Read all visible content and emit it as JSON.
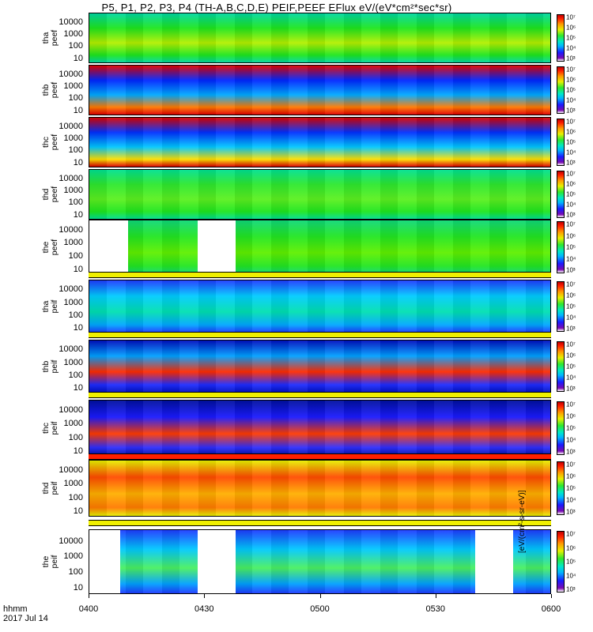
{
  "chart_data": {
    "type": "heatmap",
    "title": "P5, P1, P2, P3, P4 (TH-A,B,C,D,E) PEIF,PEEF EFlux eV/(eV*cm²*sec*sr)",
    "date": "2017 Jul 14",
    "xlabel": "hhmm",
    "x_ticks": [
      "0400",
      "0430",
      "0500",
      "0530",
      "0600"
    ],
    "x_range": [
      "0400",
      "0600"
    ],
    "y_ticks": [
      "10",
      "100",
      "1000",
      "10000"
    ],
    "y_scale": "log",
    "colorbar": {
      "scale": "log",
      "colormap": "rainbow",
      "label": "[eV/(cm²-s-sr-eV)]",
      "tick_labels": [
        "10³",
        "10⁴",
        "10⁵",
        "10⁶",
        "10⁷"
      ]
    },
    "panels": [
      {
        "name": "tha peef",
        "label": "tha\npeef"
      },
      {
        "name": "thb peef",
        "label": "thb\npeef"
      },
      {
        "name": "thc peef",
        "label": "thc\npeef"
      },
      {
        "name": "thd peef",
        "label": "thd\npeef"
      },
      {
        "name": "the peef",
        "label": "the\npeef"
      },
      {
        "name": "tha peif",
        "label": "tha\npeif"
      },
      {
        "name": "thb peif",
        "label": "thb\npeif"
      },
      {
        "name": "thc peif",
        "label": "thc\npeif"
      },
      {
        "name": "thd peif",
        "label": "thd\npeif"
      },
      {
        "name": "the peif",
        "label": "the\npeif"
      }
    ],
    "data_gaps": {
      "the peef": [
        [
          "0400",
          "0410"
        ],
        [
          "0428",
          "0438"
        ]
      ],
      "the peif": [
        [
          "0400",
          "0408"
        ],
        [
          "0428",
          "0438"
        ],
        [
          "0540",
          "0550"
        ]
      ]
    }
  },
  "colors": {
    "low": "#1a1aff",
    "mid": "#2ee82e",
    "high": "#ff1f00",
    "gap": "#ffffff"
  }
}
